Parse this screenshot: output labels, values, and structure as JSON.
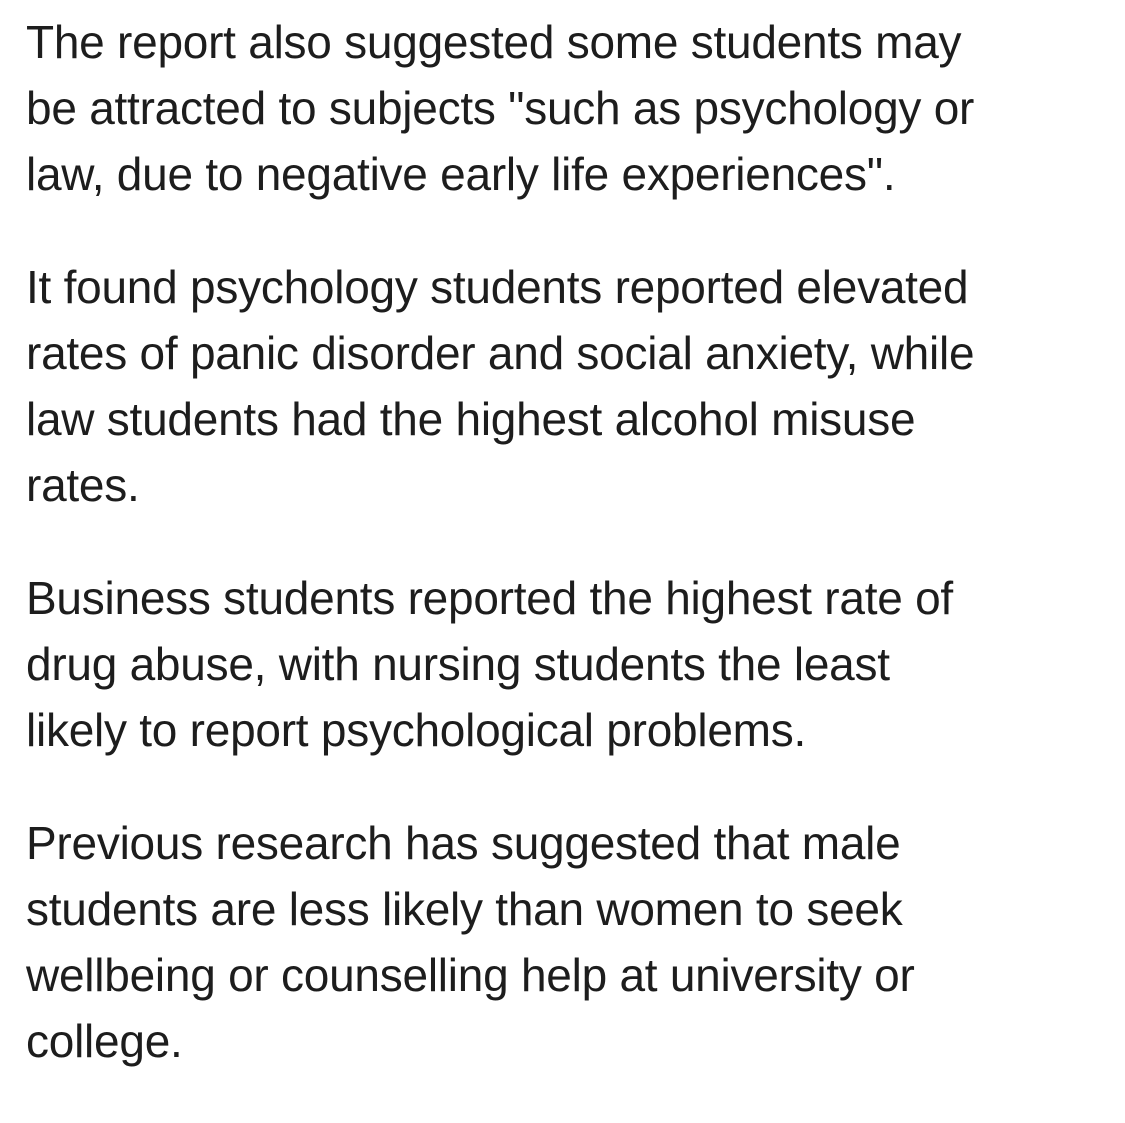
{
  "page": {
    "background_color": "#ffffff",
    "text_color": "#1d1d1d"
  },
  "article": {
    "paragraphs": [
      {
        "lines": [
          "The report also suggested some students may",
          "be attracted to subjects \"such as psychology or",
          "law, due to negative early life experiences\"."
        ]
      },
      {
        "lines": [
          "It found psychology students reported elevated",
          "rates of panic disorder and social anxiety, while",
          "law students had the highest alcohol misuse",
          "rates."
        ]
      },
      {
        "lines": [
          "Business students reported the highest rate of",
          "drug abuse, with nursing students the least",
          "likely to report psychological problems."
        ]
      },
      {
        "lines": [
          "Previous research has suggested that male",
          "students are less likely than women to seek",
          "wellbeing or counselling help at university or",
          "college."
        ]
      }
    ]
  }
}
